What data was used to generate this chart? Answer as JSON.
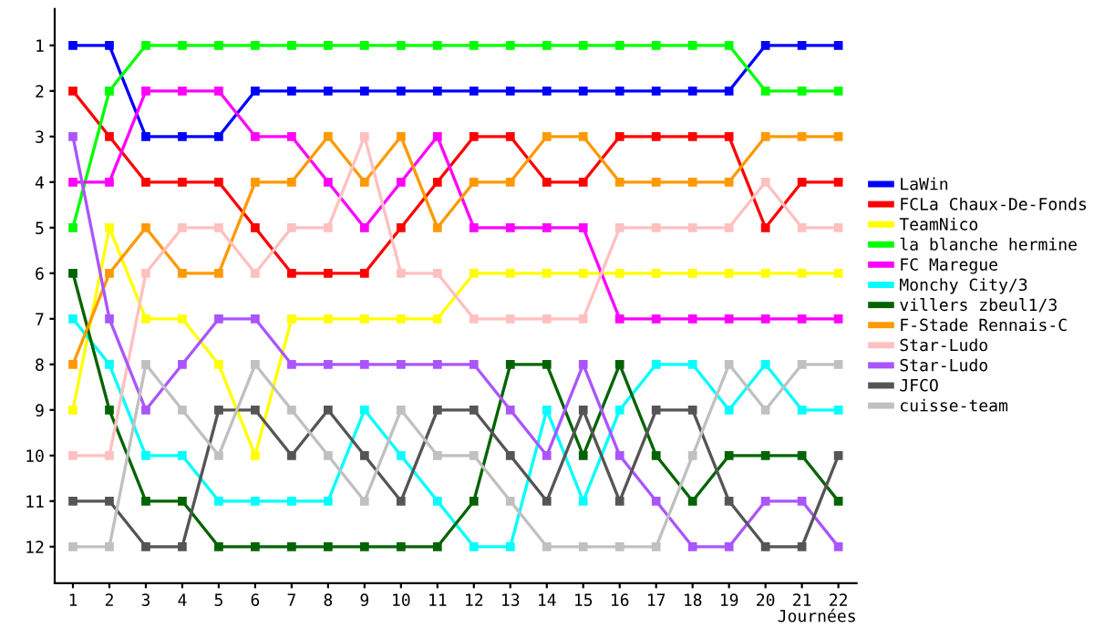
{
  "chart_data": {
    "type": "line",
    "xlabel": "Journées",
    "x": [
      1,
      2,
      3,
      4,
      5,
      6,
      7,
      8,
      9,
      10,
      11,
      12,
      13,
      14,
      15,
      16,
      17,
      18,
      19,
      20,
      21,
      22
    ],
    "xlim": [
      0.5,
      22.5
    ],
    "xticks": [
      1,
      2,
      3,
      4,
      5,
      6,
      7,
      8,
      9,
      10,
      11,
      12,
      13,
      14,
      15,
      16,
      17,
      18,
      19,
      20,
      21,
      22
    ],
    "ylim": [
      12.8,
      0.2
    ],
    "yticks": [
      1,
      2,
      3,
      4,
      5,
      6,
      7,
      8,
      9,
      10,
      11,
      12
    ],
    "grid": false,
    "legend": "right",
    "marker": "square",
    "line_style": "solid",
    "series": [
      {
        "name": "LaWin",
        "color": "#0000ff",
        "values": [
          1,
          1,
          3,
          3,
          3,
          2,
          2,
          2,
          2,
          2,
          2,
          2,
          2,
          2,
          2,
          2,
          2,
          2,
          2,
          1,
          1,
          1
        ]
      },
      {
        "name": "FCLa Chaux-De-Fonds",
        "color": "#ff0000",
        "values": [
          2,
          3,
          4,
          4,
          4,
          5,
          6,
          6,
          6,
          5,
          4,
          3,
          3,
          4,
          4,
          3,
          3,
          3,
          3,
          5,
          4,
          4
        ]
      },
      {
        "name": "TeamNico",
        "color": "#ffff00",
        "values": [
          9,
          5,
          7,
          7,
          8,
          10,
          7,
          7,
          7,
          7,
          7,
          6,
          6,
          6,
          6,
          6,
          6,
          6,
          6,
          6,
          6,
          6
        ]
      },
      {
        "name": "la blanche hermine",
        "color": "#00ff00",
        "values": [
          5,
          2,
          1,
          1,
          1,
          1,
          1,
          1,
          1,
          1,
          1,
          1,
          1,
          1,
          1,
          1,
          1,
          1,
          1,
          2,
          2,
          2
        ]
      },
      {
        "name": "FC Maregue",
        "color": "#ff00ff",
        "values": [
          4,
          4,
          2,
          2,
          2,
          3,
          3,
          4,
          5,
          4,
          3,
          5,
          5,
          5,
          5,
          7,
          7,
          7,
          7,
          7,
          7,
          7
        ]
      },
      {
        "name": "Monchy City/3",
        "color": "#00ffff",
        "values": [
          7,
          8,
          10,
          10,
          11,
          11,
          11,
          11,
          9,
          10,
          11,
          12,
          12,
          9,
          11,
          9,
          8,
          8,
          9,
          8,
          9,
          9
        ]
      },
      {
        "name": "villers zbeul1/3",
        "color": "#006400",
        "values": [
          6,
          9,
          11,
          11,
          12,
          12,
          12,
          12,
          12,
          12,
          12,
          11,
          8,
          8,
          10,
          8,
          10,
          11,
          10,
          10,
          10,
          11
        ]
      },
      {
        "name": "F-Stade Rennais-C",
        "color": "#ff9900",
        "values": [
          8,
          6,
          5,
          6,
          6,
          4,
          4,
          3,
          4,
          3,
          5,
          4,
          4,
          3,
          3,
          4,
          4,
          4,
          4,
          3,
          3,
          3
        ]
      },
      {
        "name": "Star-Ludo",
        "color": "#ffc0c0",
        "values": [
          10,
          10,
          6,
          5,
          5,
          6,
          5,
          5,
          3,
          6,
          6,
          7,
          7,
          7,
          7,
          5,
          5,
          5,
          5,
          4,
          5,
          5
        ]
      },
      {
        "name": "Star-Ludo",
        "color": "#aa55ff",
        "values": [
          3,
          7,
          9,
          8,
          7,
          7,
          8,
          8,
          8,
          8,
          8,
          8,
          9,
          10,
          8,
          10,
          11,
          12,
          12,
          11,
          11,
          12
        ]
      },
      {
        "name": "JFCO",
        "color": "#555555",
        "values": [
          11,
          11,
          12,
          12,
          9,
          9,
          10,
          9,
          10,
          11,
          9,
          9,
          10,
          11,
          9,
          11,
          9,
          9,
          11,
          12,
          12,
          10
        ]
      },
      {
        "name": "cuisse-team",
        "color": "#c0c0c0",
        "values": [
          12,
          12,
          8,
          9,
          10,
          8,
          9,
          10,
          11,
          9,
          10,
          10,
          11,
          12,
          12,
          12,
          12,
          10,
          8,
          9,
          8,
          8
        ]
      }
    ]
  }
}
